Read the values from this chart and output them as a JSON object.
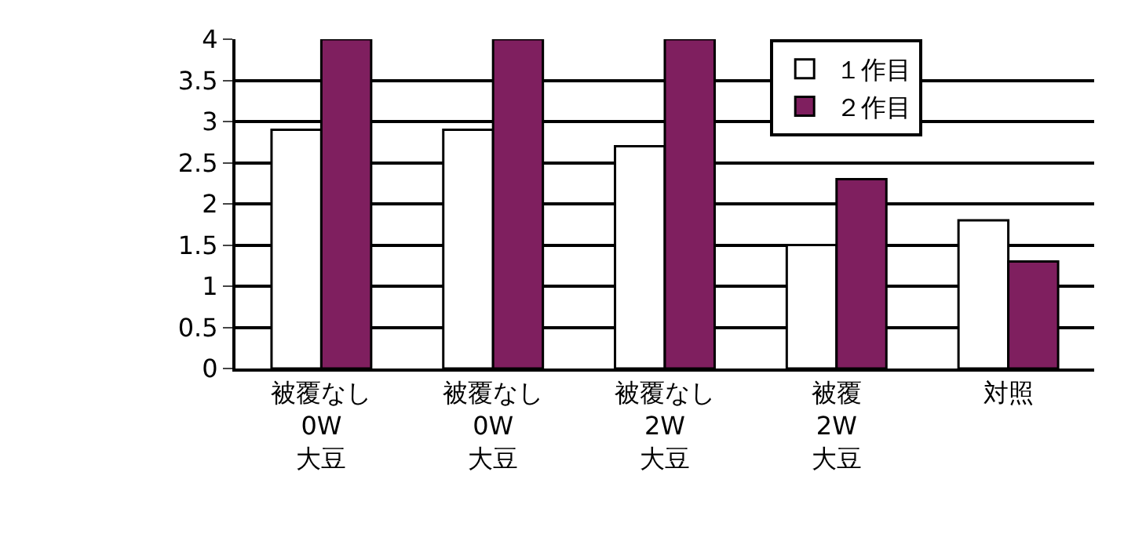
{
  "chart_data": {
    "type": "bar",
    "categories": [
      "被覆なし\n0W\n大豆",
      "被覆なし\n0W\n大豆",
      "被覆なし\n2W\n大豆",
      "被覆\n2W\n大豆",
      "対照"
    ],
    "series": [
      {
        "name": "１作目",
        "color": "#ffffff",
        "values": [
          2.9,
          2.9,
          2.7,
          1.5,
          1.8
        ]
      },
      {
        "name": "２作目",
        "color": "#7f1f5f",
        "values": [
          4,
          4,
          4,
          2.3,
          1.3
        ]
      }
    ],
    "ylim": [
      0,
      4
    ],
    "yticks": [
      0,
      0.5,
      1,
      1.5,
      2,
      2.5,
      3,
      3.5,
      4
    ],
    "grid": "y",
    "legend": "top right"
  }
}
